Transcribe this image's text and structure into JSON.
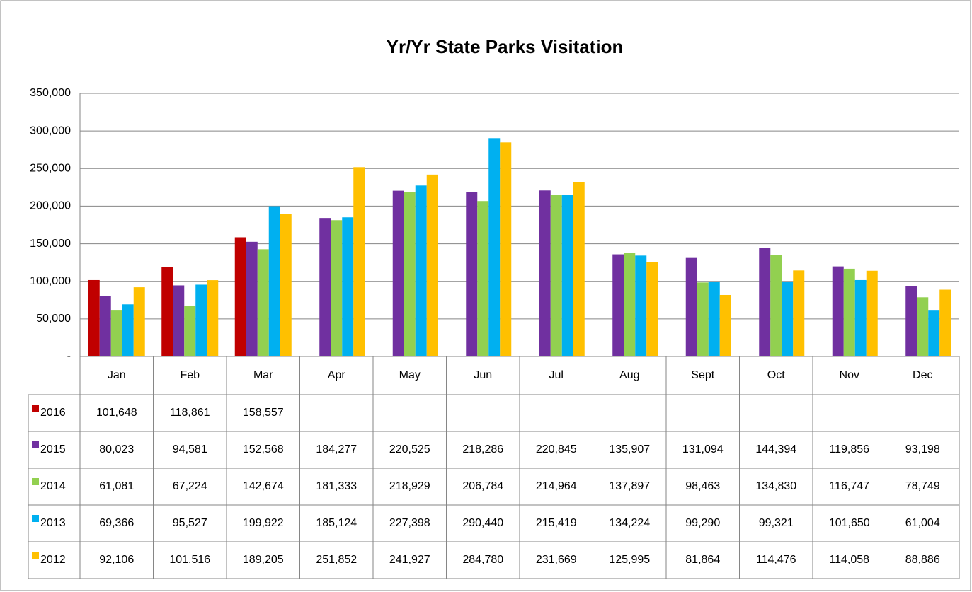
{
  "chart_data": {
    "type": "bar",
    "title": "Yr/Yr State Parks Visitation",
    "categories": [
      "Jan",
      "Feb",
      "Mar",
      "Apr",
      "May",
      "Jun",
      "Jul",
      "Aug",
      "Sept",
      "Oct",
      "Nov",
      "Dec"
    ],
    "series": [
      {
        "name": "2016",
        "color": "#c00000",
        "values": [
          101648,
          118861,
          158557,
          null,
          null,
          null,
          null,
          null,
          null,
          null,
          null,
          null
        ],
        "value_labels": [
          "101,648",
          "118,861",
          "158,557",
          null,
          null,
          null,
          null,
          null,
          null,
          null,
          null,
          null
        ]
      },
      {
        "name": "2015",
        "color": "#7030a0",
        "values": [
          80023,
          94581,
          152568,
          184277,
          220525,
          218286,
          220845,
          135907,
          131094,
          144394,
          119856,
          93198
        ],
        "value_labels": [
          "80,023",
          "94,581",
          "152,568",
          "184,277",
          "220,525",
          "218,286",
          "220,845",
          "135,907",
          "131,094",
          "144,394",
          "119,856",
          "93,198"
        ]
      },
      {
        "name": "2014",
        "color": "#92d050",
        "values": [
          61081,
          67224,
          142674,
          181333,
          218929,
          206784,
          214964,
          137897,
          98463,
          134830,
          116747,
          78749
        ],
        "value_labels": [
          "61,081",
          "67,224",
          "142,674",
          "181,333",
          "218,929",
          "206,784",
          "214,964",
          "137,897",
          "98,463",
          "134,830",
          "116,747",
          "78,749"
        ]
      },
      {
        "name": "2013",
        "color": "#00b0f0",
        "values": [
          69366,
          95527,
          199922,
          185124,
          227398,
          290440,
          215419,
          134224,
          99290,
          99321,
          101650,
          61004
        ],
        "value_labels": [
          "69,366",
          "95,527",
          "199,922",
          "185,124",
          "227,398",
          "290,440",
          "215,419",
          "134,224",
          "99,290",
          "99,321",
          "101,650",
          "61,004"
        ]
      },
      {
        "name": "2012",
        "color": "#ffc000",
        "values": [
          92106,
          101516,
          189205,
          251852,
          241927,
          284780,
          231669,
          125995,
          81864,
          114476,
          114058,
          88886
        ],
        "value_labels": [
          "92,106",
          "101,516",
          "189,205",
          "251,852",
          "241,927",
          "284,780",
          "231,669",
          "125,995",
          "81,864",
          "114,476",
          "114,058",
          "88,886"
        ]
      }
    ],
    "ylim": [
      0,
      350000
    ],
    "yticks": [
      {
        "value": 0,
        "label": "-"
      },
      {
        "value": 50000,
        "label": "50,000"
      },
      {
        "value": 100000,
        "label": "100,000"
      },
      {
        "value": 150000,
        "label": "150,000"
      },
      {
        "value": 200000,
        "label": "200,000"
      },
      {
        "value": 250000,
        "label": "250,000"
      },
      {
        "value": 300000,
        "label": "300,000"
      },
      {
        "value": 350000,
        "label": "350,000"
      }
    ],
    "grid": true
  }
}
